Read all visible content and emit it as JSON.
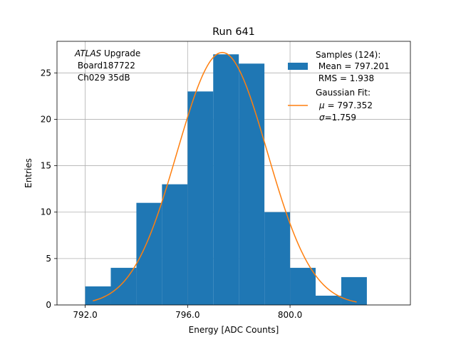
{
  "chart_data": {
    "type": "bar",
    "title": "Run 641",
    "xlabel": "Energy [ADC Counts]",
    "ylabel": "Entries",
    "xlim": [
      790.9,
      804.7
    ],
    "ylim": [
      0,
      28.4
    ],
    "grid": true,
    "xticks": [
      792.0,
      796.0,
      800.0
    ],
    "xtick_labels": [
      "792.0",
      "796.0",
      "800.0"
    ],
    "yticks": [
      0,
      5,
      10,
      15,
      20,
      25
    ],
    "ytick_labels": [
      "0",
      "5",
      "10",
      "15",
      "20",
      "25"
    ],
    "bins": [
      {
        "x0": 792.0,
        "x1": 793.0,
        "count": 2
      },
      {
        "x0": 793.0,
        "x1": 794.0,
        "count": 4
      },
      {
        "x0": 794.0,
        "x1": 795.0,
        "count": 11
      },
      {
        "x0": 795.0,
        "x1": 796.0,
        "count": 13
      },
      {
        "x0": 796.0,
        "x1": 797.0,
        "count": 23
      },
      {
        "x0": 797.0,
        "x1": 798.0,
        "count": 27
      },
      {
        "x0": 798.0,
        "x1": 799.0,
        "count": 26
      },
      {
        "x0": 799.0,
        "x1": 800.0,
        "count": 10
      },
      {
        "x0": 800.0,
        "x1": 801.0,
        "count": 4
      },
      {
        "x0": 801.0,
        "x1": 802.0,
        "count": 1
      },
      {
        "x0": 802.0,
        "x1": 803.0,
        "count": 3
      }
    ],
    "fit": {
      "name": "Gaussian Fit",
      "mu": 797.352,
      "sigma": 1.759,
      "amplitude": 27.2,
      "x_range": [
        792.3,
        802.6
      ]
    },
    "colors": {
      "bars": "#1f77b4",
      "fit": "#ff7f0e",
      "grid": "#b0b0b0"
    },
    "annotation_lines": [
      "ATLAS",
      " Upgrade",
      " Board187722",
      " Ch029 35dB"
    ],
    "legend": {
      "location": "top-right",
      "samples_lines": [
        "Samples (124):",
        " Mean = 797.201",
        " RMS = 1.938"
      ],
      "fit_lines": [
        "Gaussian Fit:",
        "μ",
        " = 797.352",
        "σ",
        "=1.759"
      ]
    }
  }
}
